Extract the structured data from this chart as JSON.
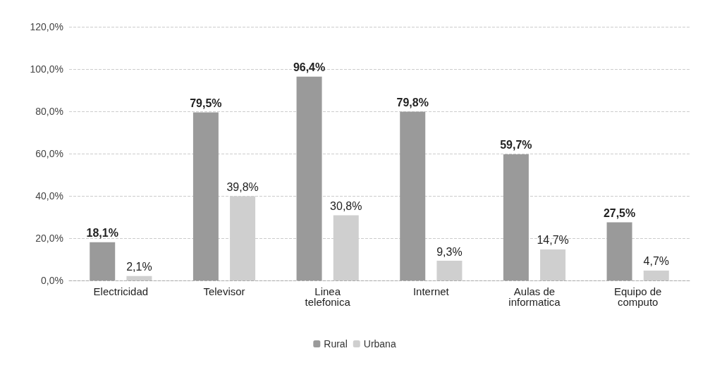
{
  "chart_data": {
    "type": "bar",
    "categories": [
      "Electricidad",
      "Televisor",
      "Linea\ntelefonica",
      "Internet",
      "Aulas de\ninformatica",
      "Equipo de\ncomputo"
    ],
    "series": [
      {
        "name": "Rural",
        "color": "#9a9a9a",
        "values": [
          18.1,
          79.5,
          96.4,
          79.8,
          59.7,
          27.5
        ],
        "value_labels": [
          "18,1%",
          "79,5%",
          "96,4%",
          "79,8%",
          "59,7%",
          "27,5%"
        ]
      },
      {
        "name": "Urbana",
        "color": "#cfcfcf",
        "values": [
          2.1,
          39.8,
          30.8,
          9.3,
          14.7,
          4.7
        ],
        "value_labels": [
          "2,1%",
          "39,8%",
          "30,8%",
          "9,3%",
          "14,7%",
          "4,7%"
        ]
      }
    ],
    "ylim": [
      0,
      120
    ],
    "yticks": [
      {
        "value": 0,
        "label": "0,0%"
      },
      {
        "value": 20,
        "label": "20,0%"
      },
      {
        "value": 40,
        "label": "40,0%"
      },
      {
        "value": 60,
        "label": "60,0%"
      },
      {
        "value": 80,
        "label": "80,0%"
      },
      {
        "value": 100,
        "label": "100,0%"
      },
      {
        "value": 120,
        "label": "120,0%"
      }
    ],
    "grid": "y",
    "legend": "bottom"
  }
}
